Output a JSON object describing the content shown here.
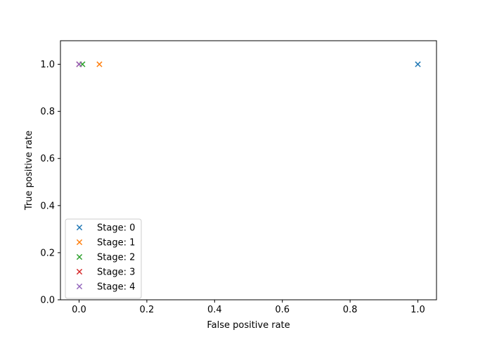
{
  "chart_data": {
    "type": "scatter",
    "title": "",
    "xlabel": "False positive rate",
    "ylabel": "True positive rate",
    "xlim": [
      -0.055,
      1.055
    ],
    "ylim": [
      0.0,
      1.1
    ],
    "xticks": [
      0.0,
      0.2,
      0.4,
      0.6,
      0.8,
      1.0
    ],
    "yticks": [
      0.0,
      0.2,
      0.4,
      0.6,
      0.8,
      1.0
    ],
    "tick_labels_x": [
      "0.0",
      "0.2",
      "0.4",
      "0.6",
      "0.8",
      "1.0"
    ],
    "tick_labels_y": [
      "0.0",
      "0.2",
      "0.4",
      "0.6",
      "0.8",
      "1.0"
    ],
    "marker": "x",
    "grid": false,
    "legend_position": "lower-left",
    "series": [
      {
        "name": "Stage: 0",
        "color": "#1f77b4",
        "points": [
          {
            "x": 1.0,
            "y": 1.0
          }
        ]
      },
      {
        "name": "Stage: 1",
        "color": "#ff7f0e",
        "points": [
          {
            "x": 0.06,
            "y": 1.0
          }
        ]
      },
      {
        "name": "Stage: 2",
        "color": "#2ca02c",
        "points": [
          {
            "x": 0.01,
            "y": 1.0
          }
        ]
      },
      {
        "name": "Stage: 3",
        "color": "#d62728",
        "points": [
          {
            "x": 0.0,
            "y": 1.0
          }
        ]
      },
      {
        "name": "Stage: 4",
        "color": "#9467bd",
        "points": [
          {
            "x": 0.0,
            "y": 1.0
          }
        ]
      }
    ]
  }
}
